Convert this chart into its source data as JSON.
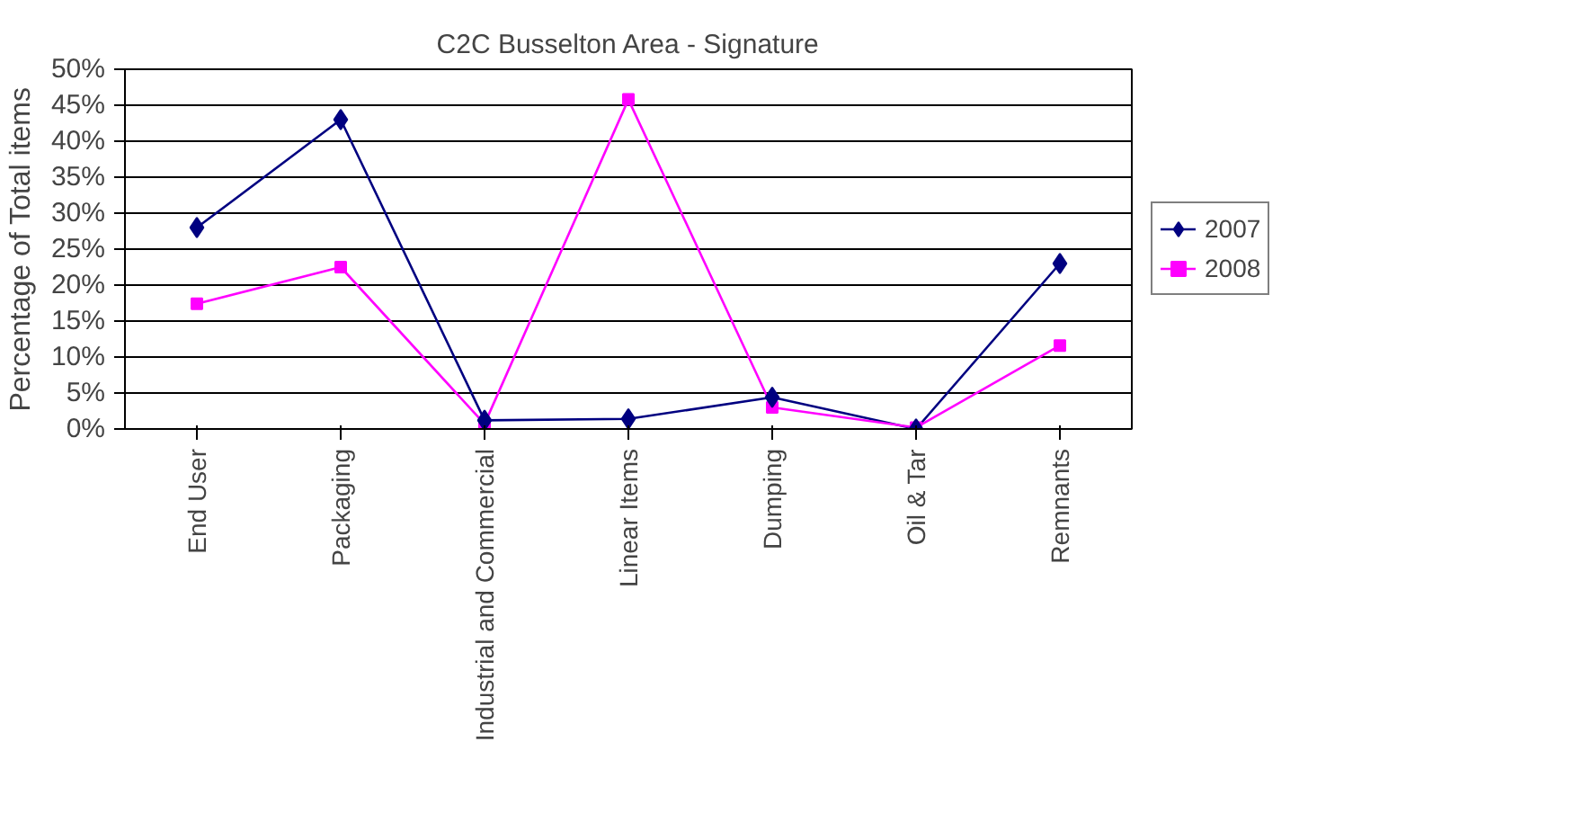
{
  "chart_data": {
    "type": "line",
    "title": "C2C Busselton Area - Signature",
    "ylabel": "Percentage of Total items",
    "categories": [
      "End User",
      "Packaging",
      "Industrial and Commercial",
      "Linear Items",
      "Dumping",
      "Oil & Tar",
      "Remnants"
    ],
    "series": [
      {
        "name": "2007",
        "color": "#000080",
        "marker": "diamond",
        "values": [
          28,
          43,
          1.2,
          1.4,
          4.4,
          0,
          23
        ]
      },
      {
        "name": "2008",
        "color": "#ff00ff",
        "marker": "square",
        "values": [
          17.4,
          22.5,
          0.7,
          45.8,
          3,
          0.2,
          11.6
        ]
      }
    ],
    "ylim": [
      0,
      50
    ],
    "yticks": [
      {
        "value": 0,
        "label": "0%"
      },
      {
        "value": 5,
        "label": "5%"
      },
      {
        "value": 10,
        "label": "10%"
      },
      {
        "value": 15,
        "label": "15%"
      },
      {
        "value": 20,
        "label": "20%"
      },
      {
        "value": 25,
        "label": "25%"
      },
      {
        "value": 30,
        "label": "30%"
      },
      {
        "value": 35,
        "label": "35%"
      },
      {
        "value": 40,
        "label": "40%"
      },
      {
        "value": 45,
        "label": "45%"
      },
      {
        "value": 50,
        "label": "50%"
      }
    ],
    "grid": "y",
    "legend": "right",
    "line_style": "solid"
  }
}
